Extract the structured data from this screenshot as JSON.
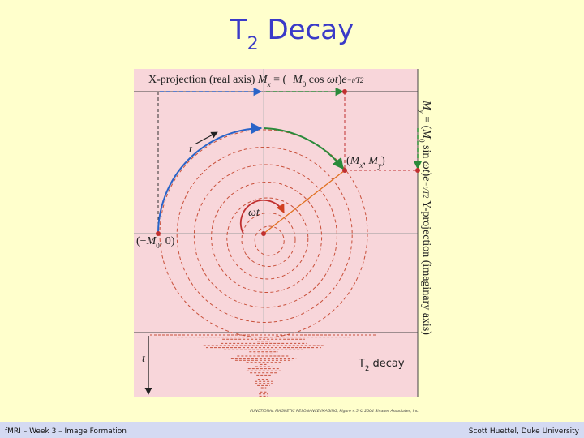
{
  "title": [
    {
      "t": "T"
    },
    {
      "t": "2",
      "s": "sub"
    },
    {
      "t": " Decay"
    }
  ],
  "figure": {
    "x_projection": [
      {
        "t": "X-projection (real axis)  "
      },
      {
        "t": "M",
        "i": true
      },
      {
        "t": "x",
        "s": "sub",
        "i": true
      },
      {
        "t": " = (−"
      },
      {
        "t": "M",
        "i": true
      },
      {
        "t": "0",
        "s": "sub"
      },
      {
        "t": " cos "
      },
      {
        "t": "ωt",
        "i": true
      },
      {
        "t": ")"
      },
      {
        "t": "e",
        "i": true
      },
      {
        "t": "−t/T2",
        "s": "sup",
        "i": true
      }
    ],
    "y_projection": [
      {
        "t": "M",
        "i": true
      },
      {
        "t": "y",
        "s": "sub",
        "i": true
      },
      {
        "t": " = ("
      },
      {
        "t": "M",
        "i": true
      },
      {
        "t": "0",
        "s": "sub"
      },
      {
        "t": " sin "
      },
      {
        "t": "ωt",
        "i": true
      },
      {
        "t": ")"
      },
      {
        "t": "e",
        "i": true
      },
      {
        "t": "−t/T2",
        "s": "sup",
        "i": true
      },
      {
        "t": "  Y-projection (imaginary axis)"
      }
    ],
    "arc_label": [
      {
        "t": "t",
        "i": true
      }
    ],
    "angle_label": [
      {
        "t": "ωt",
        "i": true
      }
    ],
    "point_label": [
      {
        "t": "("
      },
      {
        "t": "M",
        "i": true
      },
      {
        "t": "x",
        "s": "sub",
        "i": true
      },
      {
        "t": ", "
      },
      {
        "t": "M",
        "i": true
      },
      {
        "t": "y",
        "s": "sub",
        "i": true
      },
      {
        "t": ")"
      }
    ],
    "origin_label": [
      {
        "t": "(−"
      },
      {
        "t": "M",
        "i": true
      },
      {
        "t": "0",
        "s": "sub"
      },
      {
        "t": ", 0)"
      }
    ],
    "time_label": [
      {
        "t": "t",
        "i": true
      }
    ],
    "decay_label": [
      {
        "t": "T"
      },
      {
        "t": "2",
        "s": "sub"
      },
      {
        "t": " decay"
      }
    ],
    "credit": "FUNCTIONAL MAGNETIC RESONANCE IMAGING, Figure 4.5  © 2004 Sinauer Associates, Inc."
  },
  "footer": {
    "left": "fMRI – Week 3 – Image Formation",
    "right": "Scott Huettel, Duke University"
  }
}
